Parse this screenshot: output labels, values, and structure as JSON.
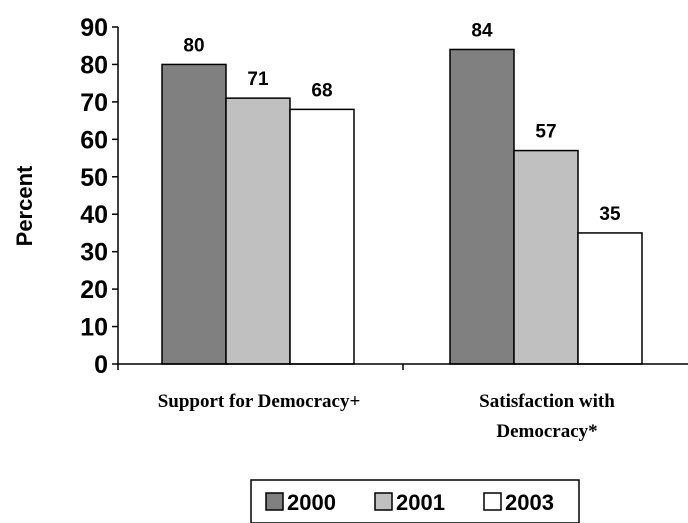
{
  "chart_data": {
    "type": "bar",
    "title": "",
    "xlabel": "",
    "ylabel": "Percent",
    "ylim": [
      0,
      90
    ],
    "yticks": [
      0,
      10,
      20,
      30,
      40,
      50,
      60,
      70,
      80,
      90
    ],
    "grid": false,
    "legend_position": "bottom",
    "categories": [
      [
        "Support for Democracy+"
      ],
      [
        "Satisfaction with",
        "Democracy*"
      ]
    ],
    "series": [
      {
        "name": "2000",
        "values": [
          80,
          84
        ],
        "color": "#808080"
      },
      {
        "name": "2001",
        "values": [
          71,
          57
        ],
        "color": "#c0c0c0"
      },
      {
        "name": "2003",
        "values": [
          68,
          35
        ],
        "color": "#ffffff"
      }
    ]
  }
}
